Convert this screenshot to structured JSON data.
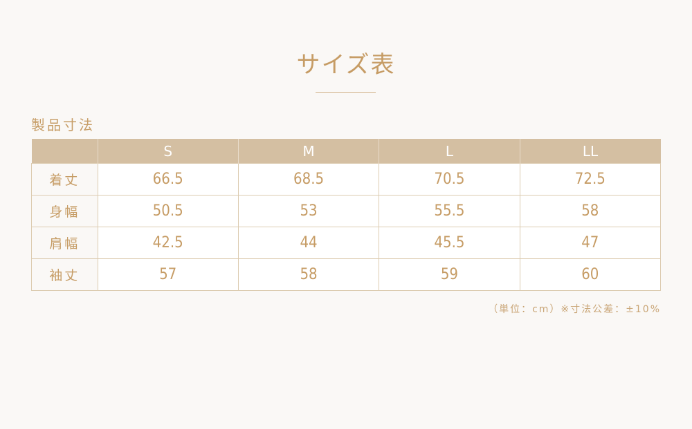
{
  "title": "サイズ表",
  "section_label": "製品寸法",
  "table": {
    "columns": [
      "",
      "S",
      "M",
      "L",
      "LL"
    ],
    "rows": [
      {
        "label": "着丈",
        "values": [
          "66.5",
          "68.5",
          "70.5",
          "72.5"
        ]
      },
      {
        "label": "身幅",
        "values": [
          "50.5",
          "53",
          "55.5",
          "58"
        ]
      },
      {
        "label": "肩幅",
        "values": [
          "42.5",
          "44",
          "45.5",
          "47"
        ]
      },
      {
        "label": "袖丈",
        "values": [
          "57",
          "58",
          "59",
          "60"
        ]
      }
    ]
  },
  "note": "（単位：cm）※寸法公差：±10%",
  "colors": {
    "accent": "#c69c65",
    "header_bg": "#d4bfa2",
    "background": "#faf8f6"
  }
}
